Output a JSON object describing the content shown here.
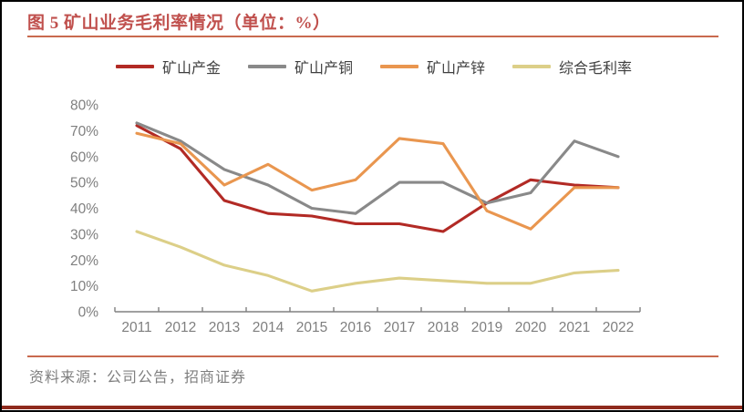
{
  "title": "图 5 矿山业务毛利率情况（单位：%）",
  "source": "资料来源：公司公告，招商证券",
  "colors": {
    "title": "#c0504d",
    "rule": "#c96a4e",
    "bottom_bar": "#8f2a1d",
    "axis": "#808080",
    "tick_label": "#7f7f7f",
    "legend_text": "#3f3f3f"
  },
  "chart_data": {
    "type": "line",
    "x": [
      2011,
      2012,
      2013,
      2014,
      2015,
      2016,
      2017,
      2018,
      2019,
      2020,
      2021,
      2022
    ],
    "series": [
      {
        "key": "gold",
        "name": "矿山产金",
        "color": "#b22a25",
        "values": [
          72,
          63,
          43,
          38,
          37,
          34,
          34,
          31,
          42,
          51,
          49,
          48
        ]
      },
      {
        "key": "copper",
        "name": "矿山产铜",
        "color": "#898989",
        "values": [
          73,
          66,
          55,
          49,
          40,
          38,
          50,
          50,
          42,
          46,
          66,
          60
        ]
      },
      {
        "key": "zinc",
        "name": "矿山产锌",
        "color": "#e9964f",
        "values": [
          69,
          65,
          49,
          57,
          47,
          51,
          67,
          65,
          39,
          32,
          48,
          48
        ]
      },
      {
        "key": "composite",
        "name": "综合毛利率",
        "color": "#dccf88",
        "values": [
          31,
          25,
          18,
          14,
          8,
          11,
          13,
          12,
          11,
          11,
          15,
          16
        ]
      }
    ],
    "ylim": [
      0,
      80
    ],
    "yticks": [
      0,
      10,
      20,
      30,
      40,
      50,
      60,
      70,
      80
    ],
    "ytick_suffix": "%",
    "legend_position": "top",
    "grid": false,
    "title": "图 5 矿山业务毛利率情况（单位：%）"
  }
}
